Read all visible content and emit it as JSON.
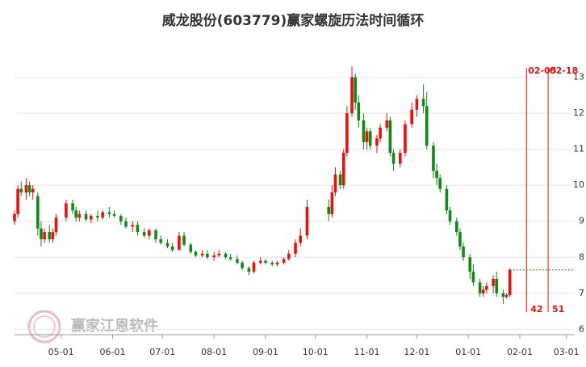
{
  "chart_data": {
    "type": "candlestick",
    "title": "威龙股份(603779)赢家螺旋历法时间循环",
    "watermark": "赢家江恩软件",
    "up_color": "#e8120c",
    "down_color": "#0d8a12",
    "xlim": [
      "04-03",
      "03-06"
    ],
    "ylim": [
      5.85,
      13.35
    ],
    "xticks": [
      "05-01",
      "06-01",
      "07-01",
      "08-01",
      "09-01",
      "10-01",
      "11-01",
      "12-01",
      "01-01",
      "02-01",
      "03-01"
    ],
    "yticks": [
      6,
      7,
      8,
      9,
      10,
      11,
      12,
      13
    ],
    "grid": true,
    "x": [
      "04-03",
      "04-05",
      "04-07",
      "04-10",
      "04-12",
      "04-14",
      "04-17",
      "04-19",
      "04-21",
      "04-24",
      "04-26",
      "04-28",
      "05-04",
      "05-08",
      "05-10",
      "05-12",
      "05-16",
      "05-19",
      "05-23",
      "05-26",
      "05-30",
      "06-02",
      "06-06",
      "06-09",
      "06-13",
      "06-16",
      "06-20",
      "06-23",
      "06-27",
      "06-30",
      "07-04",
      "07-07",
      "07-11",
      "07-14",
      "07-18",
      "07-21",
      "07-25",
      "07-28",
      "08-01",
      "08-04",
      "08-08",
      "08-11",
      "08-15",
      "08-18",
      "08-22",
      "08-25",
      "08-29",
      "09-01",
      "09-05",
      "09-08",
      "09-12",
      "09-15",
      "09-19",
      "09-22",
      "09-26",
      "10-09",
      "10-11",
      "10-13",
      "10-16",
      "10-18",
      "10-20",
      "10-23",
      "10-25",
      "10-27",
      "10-30",
      "11-01",
      "11-03",
      "11-07",
      "11-09",
      "11-13",
      "11-15",
      "11-17",
      "11-21",
      "11-24",
      "11-28",
      "12-01",
      "12-05",
      "12-07",
      "12-11",
      "12-13",
      "12-15",
      "12-19",
      "12-21",
      "12-25",
      "12-27",
      "12-29",
      "01-02",
      "01-04",
      "01-08",
      "01-10",
      "01-12",
      "01-16",
      "01-18",
      "01-22",
      "01-24",
      "01-26"
    ],
    "open": [
      9.0,
      9.2,
      9.9,
      9.8,
      10.0,
      9.8,
      9.7,
      8.8,
      8.5,
      8.7,
      8.5,
      8.7,
      9.1,
      9.5,
      9.3,
      9.1,
      9.2,
      9.05,
      9.15,
      9.1,
      9.25,
      9.2,
      9.15,
      9.0,
      8.85,
      8.9,
      8.7,
      8.6,
      8.75,
      8.5,
      8.4,
      8.3,
      8.2,
      8.6,
      8.35,
      8.15,
      8.05,
      8.1,
      8.0,
      8.05,
      8.1,
      8.0,
      7.95,
      7.85,
      7.7,
      7.6,
      7.85,
      7.9,
      7.85,
      7.8,
      7.85,
      7.95,
      8.1,
      8.4,
      8.6,
      9.4,
      9.2,
      9.8,
      10.3,
      10.0,
      10.9,
      12.0,
      13.0,
      12.3,
      11.8,
      11.2,
      11.5,
      11.1,
      11.3,
      11.6,
      11.8,
      10.9,
      10.6,
      10.9,
      11.7,
      12.1,
      12.4,
      12.2,
      11.1,
      10.4,
      10.2,
      9.9,
      9.3,
      9.0,
      8.7,
      8.3,
      8.0,
      7.6,
      7.3,
      7.0,
      7.1,
      7.2,
      7.4,
      7.0,
      6.9,
      6.95
    ],
    "high": [
      9.3,
      10.0,
      10.1,
      10.2,
      10.1,
      10.0,
      9.8,
      9.0,
      8.8,
      8.9,
      8.8,
      9.2,
      9.6,
      9.6,
      9.4,
      9.3,
      9.3,
      9.2,
      9.3,
      9.3,
      9.4,
      9.3,
      9.2,
      9.1,
      9.0,
      9.0,
      8.8,
      8.8,
      8.8,
      8.6,
      8.5,
      8.4,
      8.7,
      8.7,
      8.4,
      8.2,
      8.2,
      8.2,
      8.15,
      8.2,
      8.15,
      8.1,
      8.05,
      7.9,
      7.75,
      7.9,
      8.0,
      7.95,
      7.9,
      7.9,
      8.0,
      8.2,
      8.5,
      8.8,
      9.6,
      9.6,
      10.0,
      10.5,
      10.4,
      11.0,
      12.2,
      13.3,
      13.1,
      12.5,
      12.0,
      11.6,
      11.6,
      11.4,
      11.7,
      12.0,
      11.9,
      11.0,
      11.0,
      11.8,
      12.3,
      12.5,
      12.8,
      12.6,
      11.2,
      10.6,
      10.3,
      10.0,
      9.4,
      9.1,
      8.8,
      8.4,
      8.1,
      7.8,
      7.4,
      7.2,
      7.3,
      7.5,
      7.6,
      7.1,
      7.0,
      7.7
    ],
    "low": [
      8.9,
      9.1,
      9.7,
      9.6,
      9.7,
      9.6,
      8.6,
      8.3,
      8.4,
      8.4,
      8.4,
      8.6,
      9.0,
      9.2,
      9.0,
      9.0,
      9.0,
      8.95,
      9.0,
      9.05,
      9.1,
      9.1,
      8.9,
      8.8,
      8.7,
      8.6,
      8.55,
      8.5,
      8.4,
      8.35,
      8.25,
      8.15,
      8.2,
      8.3,
      8.1,
      8.0,
      8.0,
      7.95,
      7.9,
      8.0,
      7.95,
      7.9,
      7.8,
      7.65,
      7.5,
      7.55,
      7.8,
      7.8,
      7.75,
      7.75,
      7.8,
      7.9,
      8.0,
      8.3,
      8.5,
      9.0,
      9.1,
      9.7,
      9.9,
      9.9,
      10.8,
      11.9,
      12.1,
      11.6,
      11.0,
      11.0,
      11.0,
      10.9,
      11.2,
      11.5,
      10.8,
      10.4,
      10.5,
      10.8,
      11.6,
      11.9,
      12.0,
      11.0,
      10.2,
      10.0,
      9.8,
      9.2,
      8.9,
      8.6,
      8.2,
      7.9,
      7.4,
      7.2,
      6.9,
      6.9,
      7.0,
      7.0,
      6.9,
      6.7,
      6.85,
      6.9
    ],
    "close": [
      9.2,
      9.9,
      9.8,
      10.0,
      9.8,
      9.9,
      8.8,
      8.5,
      8.7,
      8.5,
      8.7,
      9.1,
      9.5,
      9.3,
      9.1,
      9.2,
      9.05,
      9.15,
      9.1,
      9.25,
      9.2,
      9.15,
      9.0,
      8.85,
      8.9,
      8.7,
      8.6,
      8.75,
      8.5,
      8.4,
      8.3,
      8.2,
      8.6,
      8.35,
      8.15,
      8.05,
      8.1,
      8.0,
      8.05,
      8.1,
      8.0,
      7.95,
      7.85,
      7.7,
      7.6,
      7.85,
      7.9,
      7.85,
      7.8,
      7.85,
      7.95,
      8.1,
      8.4,
      8.6,
      9.4,
      9.2,
      9.8,
      10.3,
      10.0,
      10.9,
      12.0,
      13.0,
      12.3,
      11.8,
      11.2,
      11.5,
      11.1,
      11.3,
      11.6,
      11.8,
      10.9,
      10.6,
      10.9,
      11.7,
      12.1,
      12.4,
      12.2,
      11.1,
      10.4,
      10.2,
      9.9,
      9.3,
      9.0,
      8.7,
      8.3,
      8.0,
      7.6,
      7.3,
      7.0,
      7.1,
      7.2,
      7.4,
      7.0,
      6.9,
      6.95,
      7.65
    ],
    "cycle_lines": [
      {
        "x": "02-05",
        "value": 42
      },
      {
        "x": "02-18",
        "value": 51
      }
    ]
  }
}
